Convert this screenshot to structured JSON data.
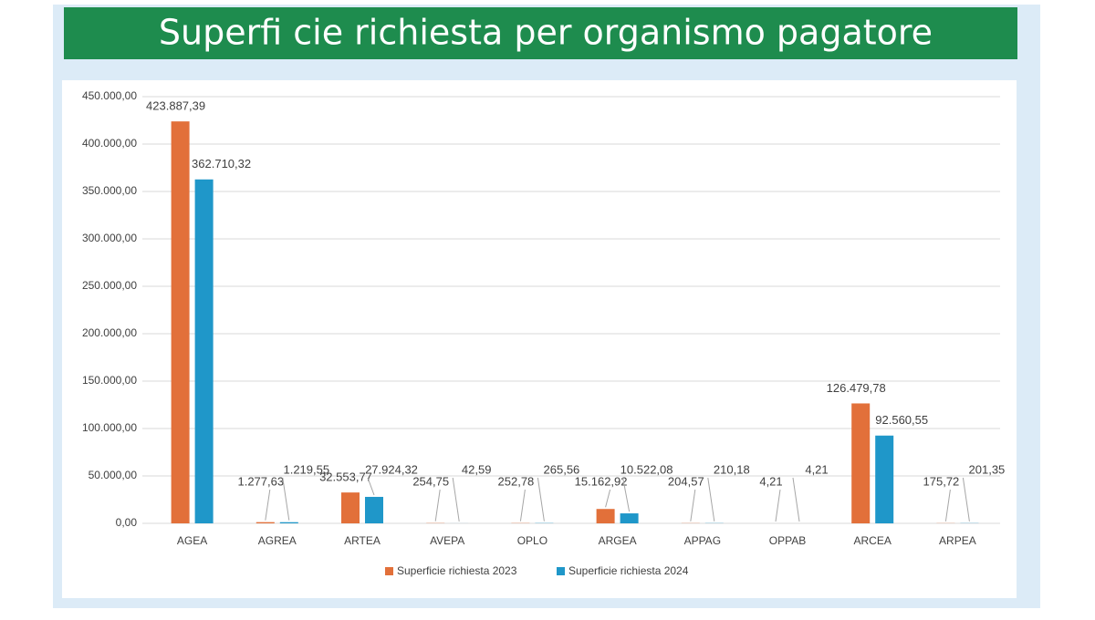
{
  "chart_data": {
    "type": "bar",
    "title": "Superfi cie richiesta per organismo pagatore",
    "categories": [
      "AGEA",
      "AGREA",
      "ARTEA",
      "AVEPA",
      "OPLO",
      "ARGEA",
      "APPAG",
      "OPPAB",
      "ARCEA",
      "ARPEA"
    ],
    "series": [
      {
        "name": "Superficie richiesta 2023",
        "color": "#e2703a",
        "values": [
          423887.39,
          1277.63,
          32553.77,
          254.75,
          252.78,
          15162.92,
          204.57,
          4.21,
          126479.78,
          175.72
        ],
        "value_labels": [
          "423.887,39",
          "1.277,63",
          "32.553,77",
          "254,75",
          "252,78",
          "15.162,92",
          "204,57",
          "4,21",
          "126.479,78",
          "175,72"
        ]
      },
      {
        "name": "Superficie richiesta 2024",
        "color": "#1f97c9",
        "values": [
          362710.32,
          1219.55,
          27924.32,
          42.59,
          265.56,
          10522.08,
          210.18,
          4.21,
          92560.55,
          201.35
        ],
        "value_labels": [
          "362.710,32",
          "1.219,55",
          "27.924,32",
          "42,59",
          "265,56",
          "10.522,08",
          "210,18",
          "4,21",
          "92.560,55",
          "201,35"
        ]
      }
    ],
    "ylim": [
      0,
      450000
    ],
    "yticks": [
      {
        "value": 0,
        "label": "0,00"
      },
      {
        "value": 50000,
        "label": "50.000,00"
      },
      {
        "value": 100000,
        "label": "100.000,00"
      },
      {
        "value": 150000,
        "label": "150.000,00"
      },
      {
        "value": 200000,
        "label": "200.000,00"
      },
      {
        "value": 250000,
        "label": "250.000,00"
      },
      {
        "value": 300000,
        "label": "300.000,00"
      },
      {
        "value": 350000,
        "label": "350.000,00"
      },
      {
        "value": 400000,
        "label": "400.000,00"
      },
      {
        "value": 450000,
        "label": "450.000,00"
      }
    ],
    "grid": true,
    "legend": "bottom"
  }
}
